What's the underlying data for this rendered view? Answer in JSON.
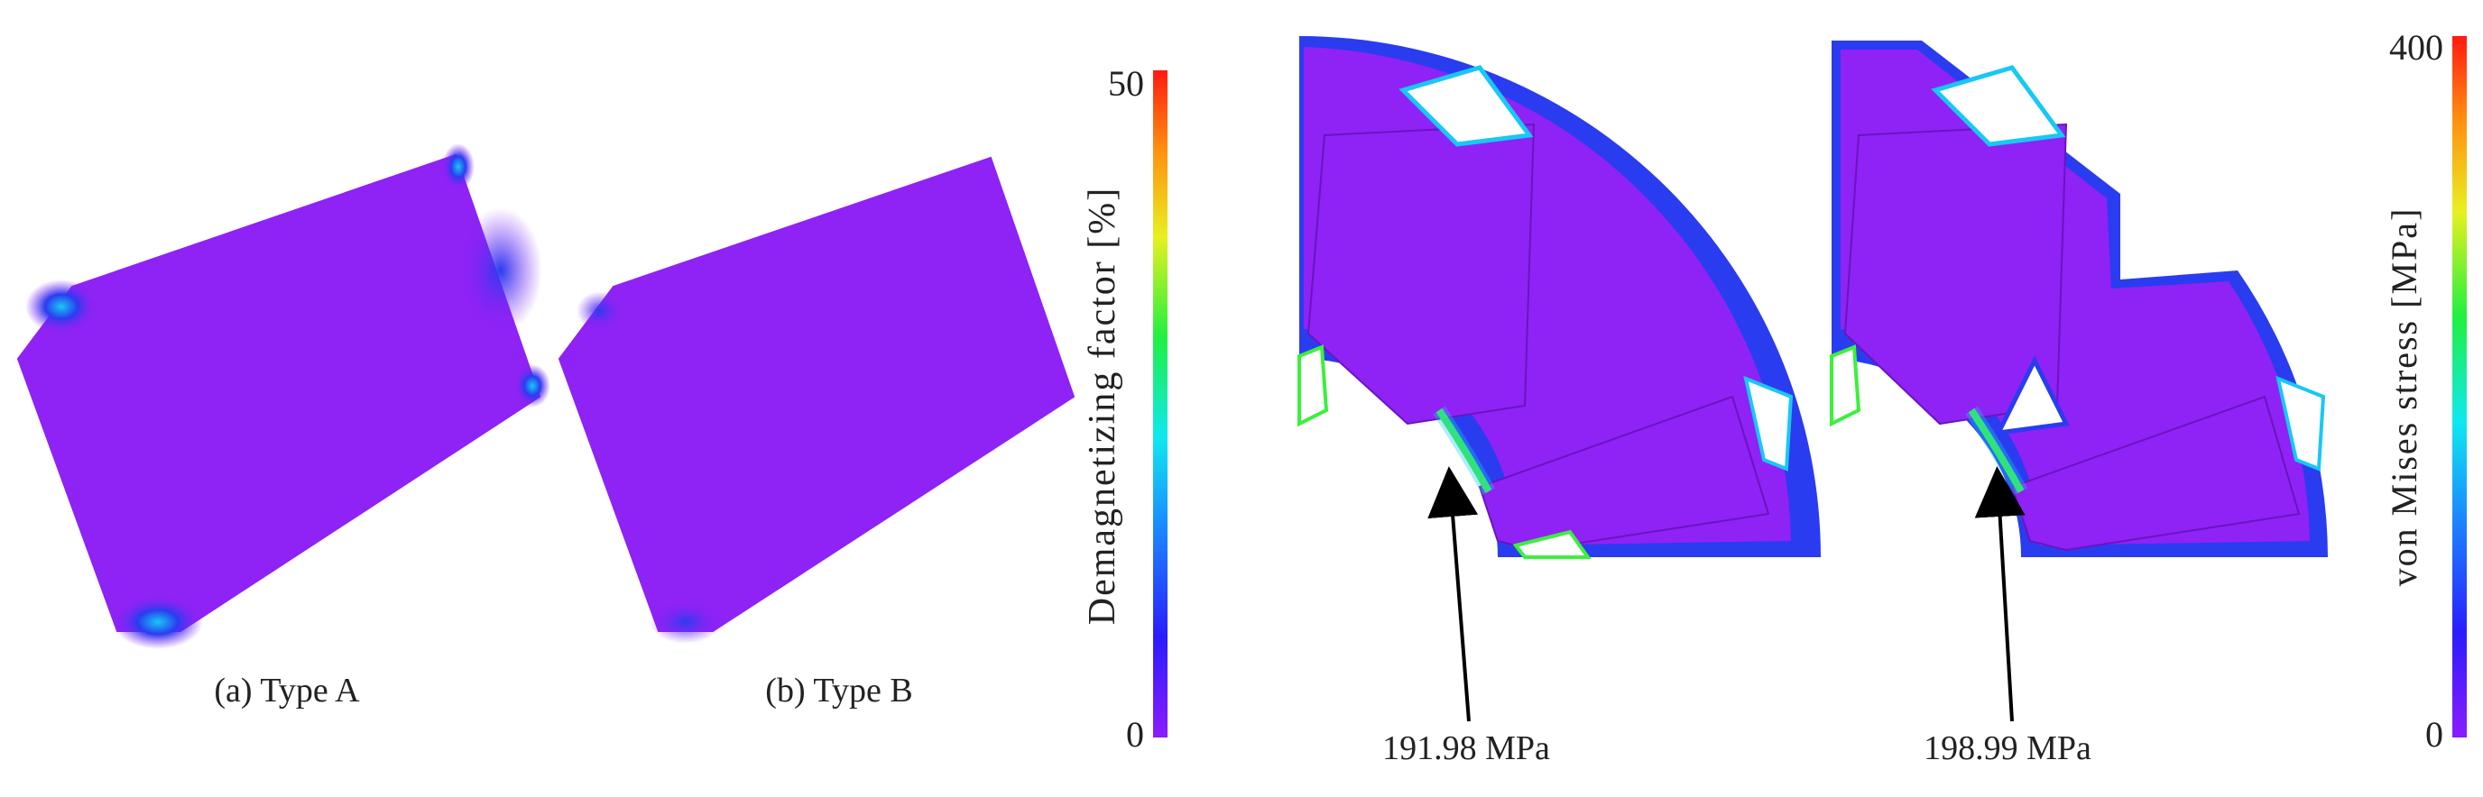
{
  "panels": {
    "a": {
      "caption": "(a) Type A"
    },
    "b": {
      "caption": "(b) Type B"
    }
  },
  "colorbar_left": {
    "title": "Demagnetizing factor [%]",
    "max_label": "50",
    "min_label": "0"
  },
  "colorbar_right": {
    "title": "von Mises stress [MPa]",
    "max_label": "400",
    "min_label": "0"
  },
  "annotations": {
    "stress_a": "191.98 MPa",
    "stress_b": "198.99 MPa"
  },
  "colors": {
    "base_violet": "#8f22f5",
    "blue": "#2a3cf0",
    "cyan": "#18c8f5",
    "green": "#3cf03c",
    "white_void": "#ffffff"
  }
}
